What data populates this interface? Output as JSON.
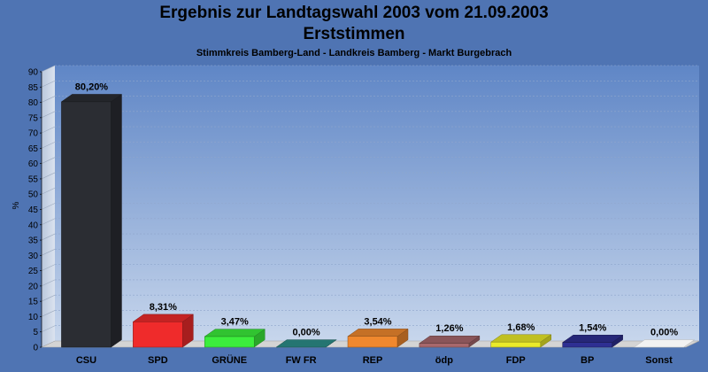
{
  "header": {
    "title": "Ergebnis zur Landtagswahl 2003 vom 21.09.2003",
    "subtitle": "Erststimmen",
    "region": "Stimmkreis Bamberg-Land - Landkreis Bamberg - Markt Burgebrach"
  },
  "chart_data": {
    "type": "bar",
    "title": "Ergebnis zur Landtagswahl 2003 vom 21.09.2003",
    "subtitle": "Erststimmen",
    "xlabel": "",
    "ylabel": "%",
    "ylim": [
      0,
      90
    ],
    "yticks": [
      "0",
      "5",
      "10",
      "15",
      "20",
      "25",
      "30",
      "35",
      "40",
      "45",
      "50",
      "55",
      "60",
      "65",
      "70",
      "75",
      "80",
      "85",
      "90"
    ],
    "grid": true,
    "legend": "none",
    "categories": [
      "CSU",
      "SPD",
      "GRÜNE",
      "FW FR",
      "REP",
      "ödp",
      "FDP",
      "BP",
      "Sonst"
    ],
    "values": [
      80.2,
      8.31,
      3.47,
      0.0,
      3.54,
      1.26,
      1.68,
      1.54,
      0.0
    ],
    "labels": [
      "80,20%",
      "8,31%",
      "3,47%",
      "0,00%",
      "3,54%",
      "1,26%",
      "1,68%",
      "1,54%",
      "0,00%"
    ],
    "colors": [
      "#2b2d33",
      "#ef2b2b",
      "#3cee3c",
      "#2d8f8a",
      "#f0882e",
      "#a8686c",
      "#eaea2a",
      "#2e2f92",
      "#ffffff"
    ]
  }
}
